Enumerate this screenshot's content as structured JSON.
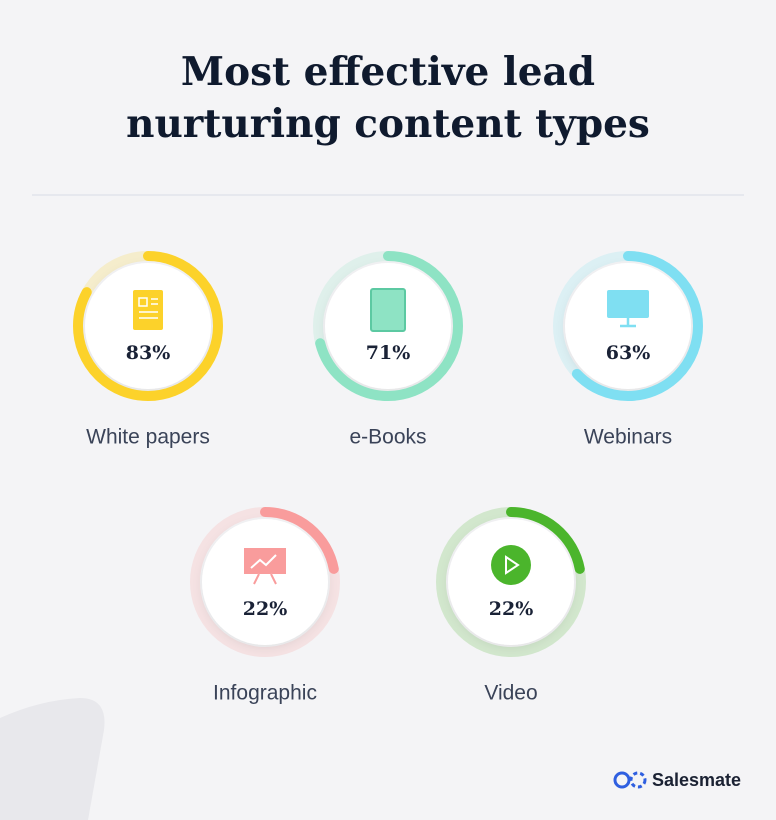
{
  "chart_data": {
    "type": "radial",
    "title": "Most effective lead nurturing content types",
    "categories": [
      "White papers",
      "e-Books",
      "Webinars",
      "Infographic",
      "Video"
    ],
    "values": [
      83,
      71,
      63,
      22,
      22
    ],
    "value_labels": [
      "83%",
      "71%",
      "63%",
      "22%",
      "22%"
    ],
    "colors": [
      "#fcd22a",
      "#8ee3c4",
      "#7fdff2",
      "#f99c9c",
      "#4bb52c"
    ]
  },
  "footer": {
    "brand": "Salesmate"
  }
}
